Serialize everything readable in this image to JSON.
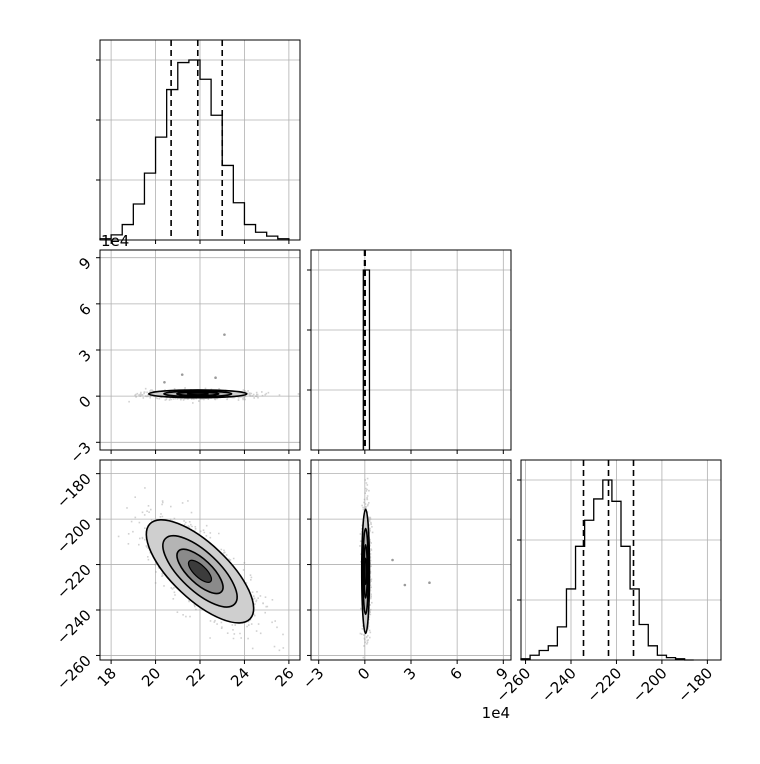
{
  "chart_data": {
    "type": "corner-plot",
    "grid": true,
    "colors": {
      "line": "#000000",
      "grid": "#b0b0b0",
      "scatter": "#9a9a9a",
      "fill_dark": "#3c3c3c",
      "fill_light": "#cfcfcf"
    },
    "params": [
      {
        "index": 0,
        "range": [
          17.5,
          26.5
        ],
        "ticks": [
          18,
          20,
          22,
          24,
          26
        ],
        "tick_labels": [
          "18",
          "20",
          "22",
          "24",
          "26"
        ],
        "offset_text": ""
      },
      {
        "index": 1,
        "range": [
          -3.5,
          9.5
        ],
        "ticks": [
          -3,
          0,
          3,
          6,
          9
        ],
        "tick_labels": [
          "−3",
          "0",
          "3",
          "6",
          "9"
        ],
        "offset_text": "1e4"
      },
      {
        "index": 2,
        "range": [
          -262,
          -174
        ],
        "ticks": [
          -260,
          -240,
          -220,
          -200,
          -180
        ],
        "tick_labels": [
          "−260",
          "−240",
          "−220",
          "−200",
          "−180"
        ],
        "offset_text": ""
      }
    ],
    "histograms": [
      {
        "param": 0,
        "bin_edges": [
          17.5,
          18.0,
          18.5,
          19.0,
          19.5,
          20.0,
          20.5,
          21.0,
          21.5,
          22.0,
          22.5,
          23.0,
          23.5,
          24.0,
          24.5,
          25.0,
          25.5,
          26.0
        ],
        "counts": [
          1,
          4,
          12,
          28,
          52,
          80,
          117,
          138,
          140,
          125,
          97,
          58,
          29,
          12,
          6,
          3,
          1
        ],
        "quantiles": [
          20.7,
          21.9,
          23.0
        ]
      },
      {
        "param": 1,
        "bin_edges": [
          -0.1,
          0.3
        ],
        "counts": [
          140
        ],
        "quantiles": [
          -0.02,
          0.0,
          0.02
        ]
      },
      {
        "param": 2,
        "bin_edges": [
          -262,
          -258,
          -254,
          -250,
          -246,
          -242,
          -238,
          -234,
          -230,
          -226,
          -222,
          -218,
          -214,
          -210,
          -206,
          -202,
          -198,
          -194,
          -190,
          -186
        ],
        "counts": [
          1,
          4,
          8,
          12,
          28,
          60,
          96,
          118,
          136,
          152,
          134,
          96,
          60,
          30,
          12,
          4,
          2,
          1,
          0
        ],
        "quantiles": [
          -234.5,
          -223.5,
          -212.5
        ]
      }
    ],
    "pairs": [
      {
        "x_param": 0,
        "y_param": 1,
        "center": [
          21.9,
          0.15
        ],
        "sigma_x": 1.05,
        "sigma_y": 0.12,
        "rho": 0.0,
        "outliers": [
          [
            21.2,
            1.4
          ],
          [
            22.7,
            1.2
          ],
          [
            23.1,
            4.0
          ],
          [
            20.4,
            0.9
          ]
        ]
      },
      {
        "x_param": 0,
        "y_param": 2,
        "center": [
          22.0,
          -223.0
        ],
        "sigma_x": 1.15,
        "sigma_y": 10.8,
        "rho": -0.72,
        "outliers": []
      },
      {
        "x_param": 1,
        "y_param": 2,
        "center": [
          0.05,
          -223.0
        ],
        "sigma_x": 0.12,
        "sigma_y": 13.0,
        "rho": 0.0,
        "outliers": [
          [
            1.8,
            -218.0
          ],
          [
            4.2,
            -228.0
          ],
          [
            2.6,
            -229.0
          ]
        ]
      }
    ]
  }
}
